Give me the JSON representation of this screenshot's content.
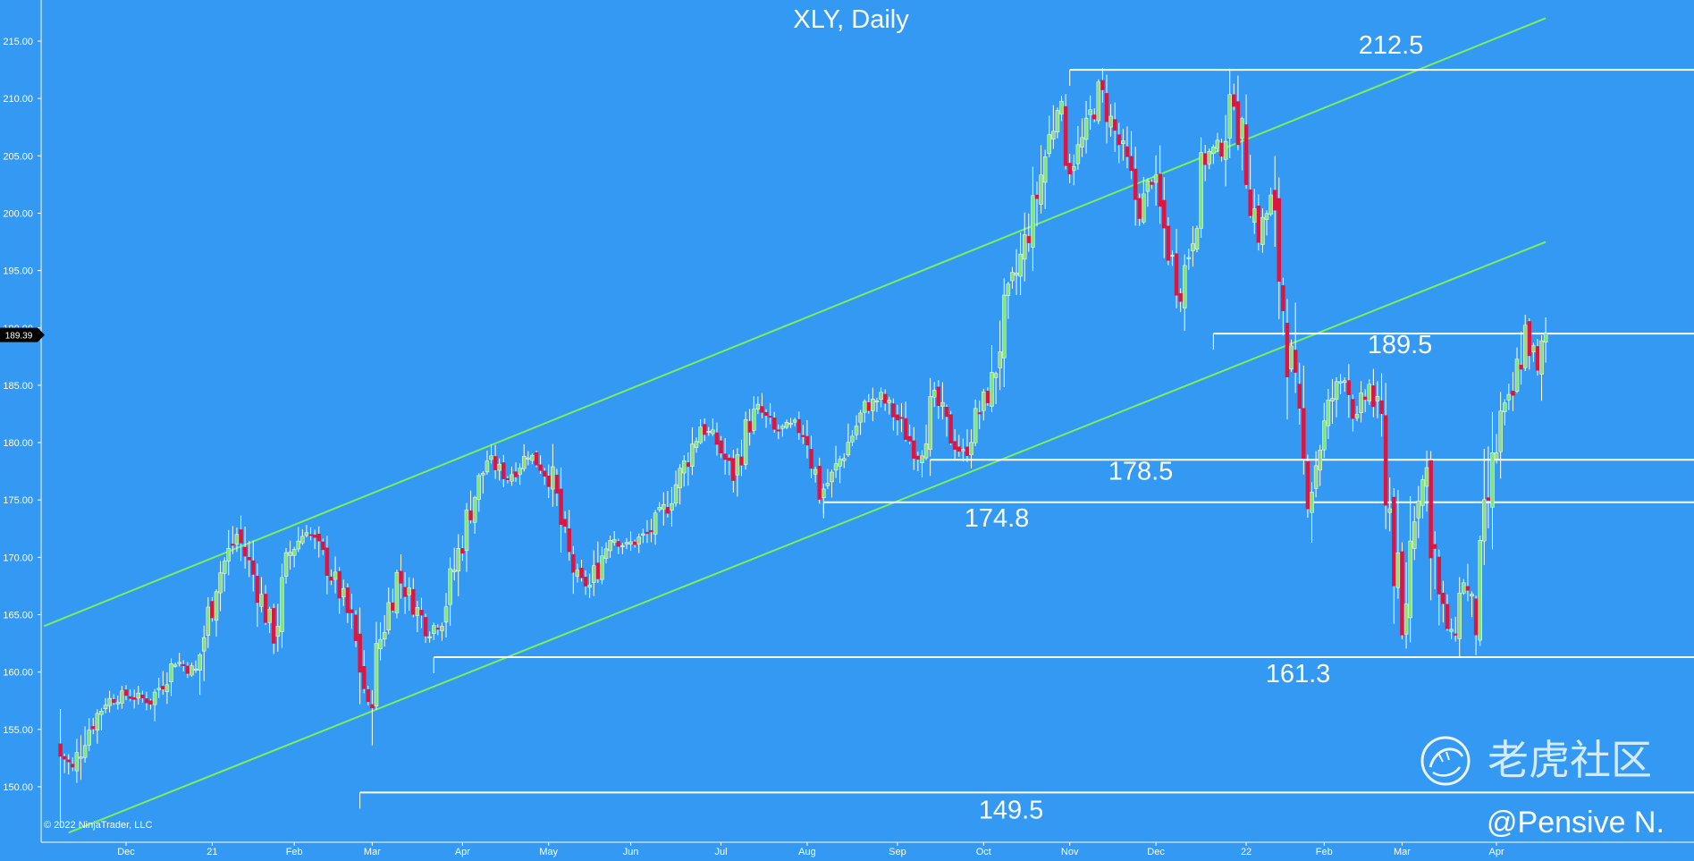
{
  "chart_data": {
    "type": "candlestick",
    "title": "XLY, Daily",
    "yaxis": {
      "range": [
        146.0,
        218.0
      ],
      "ticks": [
        "215.00",
        "210.00",
        "205.00",
        "200.00",
        "195.00",
        "190.00",
        "185.00",
        "180.00",
        "175.00",
        "170.00",
        "165.00",
        "160.00",
        "155.00",
        "150.00"
      ]
    },
    "xaxis": {
      "ticks": [
        {
          "label": "Dec",
          "day": 0
        },
        {
          "label": "21",
          "day": 21
        },
        {
          "label": "Feb",
          "day": 41
        },
        {
          "label": "Mar",
          "day": 60
        },
        {
          "label": "Apr",
          "day": 82
        },
        {
          "label": "May",
          "day": 103
        },
        {
          "label": "Jun",
          "day": 123
        },
        {
          "label": "Jul",
          "day": 145
        },
        {
          "label": "Aug",
          "day": 166
        },
        {
          "label": "Sep",
          "day": 188
        },
        {
          "label": "Oct",
          "day": 209
        },
        {
          "label": "Nov",
          "day": 230
        },
        {
          "label": "Dec",
          "day": 251
        },
        {
          "label": "22",
          "day": 273
        },
        {
          "label": "Feb",
          "day": 292
        },
        {
          "label": "Mar",
          "day": 311
        },
        {
          "label": "Apr",
          "day": 334
        }
      ]
    },
    "last_price": "189.39",
    "price_anchors": [
      {
        "day": -16,
        "price": 153.0
      },
      {
        "day": -13,
        "price": 151.5
      },
      {
        "day": -10,
        "price": 154.5
      },
      {
        "day": -5,
        "price": 157.5
      },
      {
        "day": 0,
        "price": 158.0
      },
      {
        "day": 6,
        "price": 157.5
      },
      {
        "day": 12,
        "price": 161.0
      },
      {
        "day": 17,
        "price": 160.0
      },
      {
        "day": 22,
        "price": 168.0
      },
      {
        "day": 27,
        "price": 172.0
      },
      {
        "day": 31,
        "price": 168.5
      },
      {
        "day": 36,
        "price": 163.0
      },
      {
        "day": 40,
        "price": 170.5
      },
      {
        "day": 44,
        "price": 172.5
      },
      {
        "day": 48,
        "price": 170.0
      },
      {
        "day": 52,
        "price": 167.0
      },
      {
        "day": 55,
        "price": 164.0
      },
      {
        "day": 59,
        "price": 157.0
      },
      {
        "day": 62,
        "price": 163.0
      },
      {
        "day": 66,
        "price": 168.5
      },
      {
        "day": 70,
        "price": 166.0
      },
      {
        "day": 74,
        "price": 163.5
      },
      {
        "day": 77,
        "price": 165.0
      },
      {
        "day": 80,
        "price": 169.0
      },
      {
        "day": 84,
        "price": 174.5
      },
      {
        "day": 88,
        "price": 178.5
      },
      {
        "day": 93,
        "price": 177.0
      },
      {
        "day": 98,
        "price": 179.0
      },
      {
        "day": 101,
        "price": 178.0
      },
      {
        "day": 104,
        "price": 176.5
      },
      {
        "day": 107,
        "price": 171.0
      },
      {
        "day": 110,
        "price": 168.0
      },
      {
        "day": 113,
        "price": 167.5
      },
      {
        "day": 118,
        "price": 172.0
      },
      {
        "day": 122,
        "price": 171.0
      },
      {
        "day": 127,
        "price": 172.0
      },
      {
        "day": 131,
        "price": 174.0
      },
      {
        "day": 136,
        "price": 178.0
      },
      {
        "day": 140,
        "price": 181.5
      },
      {
        "day": 144,
        "price": 180.0
      },
      {
        "day": 148,
        "price": 177.0
      },
      {
        "day": 151,
        "price": 181.0
      },
      {
        "day": 154,
        "price": 183.0
      },
      {
        "day": 158,
        "price": 181.0
      },
      {
        "day": 163,
        "price": 181.5
      },
      {
        "day": 166,
        "price": 180.5
      },
      {
        "day": 169,
        "price": 175.5
      },
      {
        "day": 172,
        "price": 177.0
      },
      {
        "day": 176,
        "price": 180.0
      },
      {
        "day": 180,
        "price": 183.0
      },
      {
        "day": 184,
        "price": 184.0
      },
      {
        "day": 188,
        "price": 182.0
      },
      {
        "day": 193,
        "price": 179.0
      },
      {
        "day": 197,
        "price": 184.0
      },
      {
        "day": 201,
        "price": 180.5
      },
      {
        "day": 204,
        "price": 179.0
      },
      {
        "day": 207,
        "price": 182.0
      },
      {
        "day": 211,
        "price": 185.0
      },
      {
        "day": 214,
        "price": 191.0
      },
      {
        "day": 218,
        "price": 196.0
      },
      {
        "day": 221,
        "price": 200.0
      },
      {
        "day": 224,
        "price": 205.0
      },
      {
        "day": 227,
        "price": 209.5
      },
      {
        "day": 230,
        "price": 204.0
      },
      {
        "day": 234,
        "price": 207.0
      },
      {
        "day": 237,
        "price": 211.0
      },
      {
        "day": 240,
        "price": 208.0
      },
      {
        "day": 244,
        "price": 204.0
      },
      {
        "day": 247,
        "price": 200.0
      },
      {
        "day": 250,
        "price": 203.0
      },
      {
        "day": 254,
        "price": 197.0
      },
      {
        "day": 257,
        "price": 193.0
      },
      {
        "day": 260,
        "price": 199.0
      },
      {
        "day": 263,
        "price": 205.0
      },
      {
        "day": 267,
        "price": 206.0
      },
      {
        "day": 270,
        "price": 210.0
      },
      {
        "day": 273,
        "price": 204.0
      },
      {
        "day": 276,
        "price": 198.0
      },
      {
        "day": 279,
        "price": 201.0
      },
      {
        "day": 282,
        "price": 192.0
      },
      {
        "day": 285,
        "price": 183.0
      },
      {
        "day": 288,
        "price": 175.0
      },
      {
        "day": 291,
        "price": 180.0
      },
      {
        "day": 294,
        "price": 184.0
      },
      {
        "day": 297,
        "price": 186.0
      },
      {
        "day": 300,
        "price": 182.0
      },
      {
        "day": 303,
        "price": 185.0
      },
      {
        "day": 306,
        "price": 181.0
      },
      {
        "day": 308,
        "price": 174.0
      },
      {
        "day": 311,
        "price": 163.0
      },
      {
        "day": 314,
        "price": 175.0
      },
      {
        "day": 317,
        "price": 177.5
      },
      {
        "day": 320,
        "price": 166.0
      },
      {
        "day": 323,
        "price": 163.0
      },
      {
        "day": 326,
        "price": 168.0
      },
      {
        "day": 329,
        "price": 164.0
      },
      {
        "day": 332,
        "price": 175.0
      },
      {
        "day": 335,
        "price": 182.0
      },
      {
        "day": 338,
        "price": 184.0
      },
      {
        "day": 341,
        "price": 190.0
      },
      {
        "day": 344,
        "price": 186.0
      },
      {
        "day": 346,
        "price": 189.4
      }
    ],
    "channel_lines": [
      {
        "from": {
          "day": -20,
          "price": 164.0
        },
        "to": {
          "day": 346,
          "price": 217.0
        }
      },
      {
        "from": {
          "day": -14,
          "price": 146.0
        },
        "to": {
          "day": 346,
          "price": 197.5
        }
      }
    ],
    "levels": [
      {
        "label": "212.5",
        "value": 212.5,
        "from_day": 230
      },
      {
        "label": "189.5",
        "value": 189.5,
        "from_day": 265
      },
      {
        "label": "178.5",
        "value": 178.5,
        "from_day": 196
      },
      {
        "label": "174.8",
        "value": 174.8,
        "from_day": 170
      },
      {
        "label": "161.3",
        "value": 161.3,
        "from_day": 75
      },
      {
        "label": "149.5",
        "value": 149.5,
        "from_day": 57
      }
    ],
    "colors": {
      "background": "#3399f3",
      "up": "#8be27a",
      "down": "#e0143c",
      "channel": "#7cf05a",
      "level": "#ffffff"
    }
  },
  "copyright": "© 2022 NinjaTrader, LLC",
  "watermark": "老虎社区",
  "author": "@Pensive N."
}
